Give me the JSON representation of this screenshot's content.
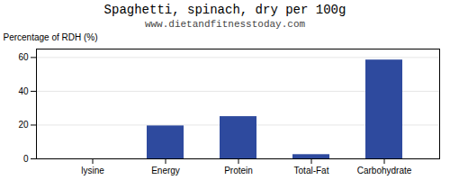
{
  "chart_data": {
    "type": "bar",
    "title": "Spaghetti, spinach, dry per 100g",
    "subtitle": "www.dietandfitnesstoday.com",
    "categories": [
      "lysine",
      "Energy",
      "Protein",
      "Total-Fat",
      "Carbohydrate"
    ],
    "values": [
      0.0,
      19.5,
      25.0,
      2.5,
      58.5
    ],
    "color": "#2e4a9e",
    "ylabel": "Percentage of RDH (%)",
    "ylim": [
      0,
      65
    ],
    "yticks": [
      0,
      20,
      40,
      60
    ],
    "grid": true
  }
}
